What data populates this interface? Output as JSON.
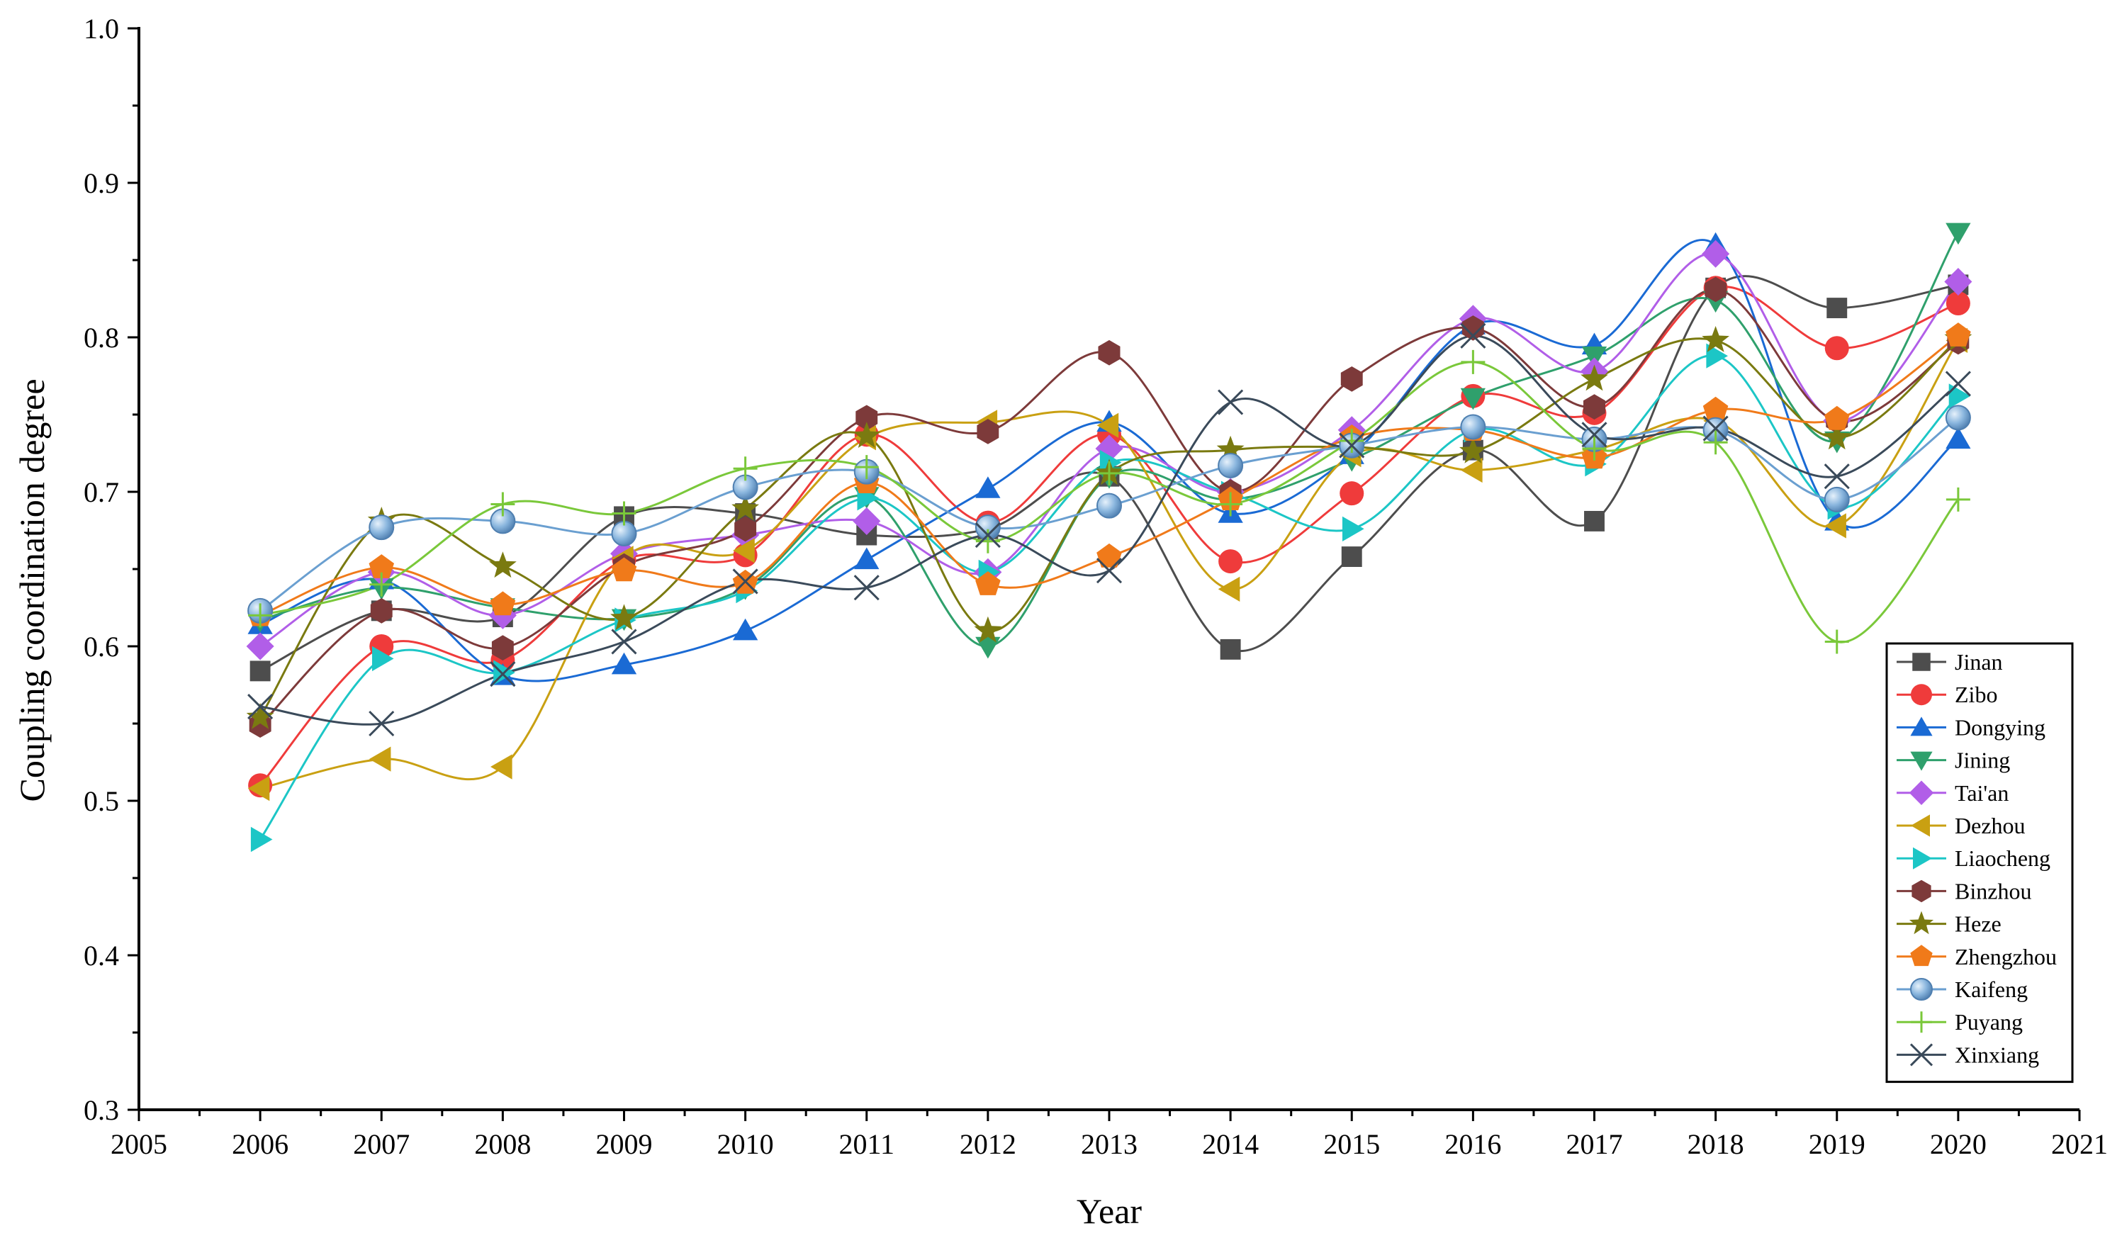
{
  "chart_data": {
    "type": "line",
    "title": "",
    "xlabel": "Year",
    "ylabel": "Coupling coordination degree",
    "xlim": [
      2005,
      2021
    ],
    "ylim": [
      0.3,
      1.0
    ],
    "xticks": [
      2005,
      2006,
      2007,
      2008,
      2009,
      2010,
      2011,
      2012,
      2013,
      2014,
      2015,
      2016,
      2017,
      2018,
      2019,
      2020,
      2021
    ],
    "yticks": [
      "0.3",
      "0.4",
      "0.5",
      "0.6",
      "0.7",
      "0.8",
      "0.9",
      "1.0"
    ],
    "legend_position": "right-middle",
    "x": [
      2006,
      2007,
      2008,
      2009,
      2010,
      2011,
      2012,
      2013,
      2014,
      2015,
      2016,
      2017,
      2018,
      2019,
      2020
    ],
    "series": [
      {
        "name": "Jinan",
        "color": "#4d4d4d",
        "marker": "square",
        "values": [
          0.584,
          0.623,
          0.619,
          0.684,
          0.686,
          0.672,
          0.676,
          0.71,
          0.598,
          0.658,
          0.727,
          0.681,
          0.832,
          0.819,
          0.834
        ]
      },
      {
        "name": "Zibo",
        "color": "#ef3b3b",
        "marker": "circle",
        "values": [
          0.51,
          0.6,
          0.591,
          0.656,
          0.659,
          0.737,
          0.68,
          0.737,
          0.655,
          0.699,
          0.762,
          0.751,
          0.832,
          0.793,
          0.822
        ]
      },
      {
        "name": "Dongying",
        "color": "#1a6ad4",
        "marker": "triangle-up",
        "values": [
          0.614,
          0.643,
          0.581,
          0.588,
          0.61,
          0.656,
          0.702,
          0.745,
          0.686,
          0.724,
          0.808,
          0.795,
          0.86,
          0.681,
          0.734
        ]
      },
      {
        "name": "Jining",
        "color": "#2fa06c",
        "marker": "triangle-down",
        "values": [
          0.617,
          0.638,
          0.625,
          0.618,
          0.638,
          0.697,
          0.6,
          0.71,
          0.695,
          0.721,
          0.761,
          0.788,
          0.824,
          0.733,
          0.868
        ]
      },
      {
        "name": "Tai'an",
        "color": "#b15ee8",
        "marker": "diamond",
        "values": [
          0.6,
          0.648,
          0.62,
          0.66,
          0.672,
          0.681,
          0.648,
          0.728,
          0.7,
          0.74,
          0.812,
          0.778,
          0.854,
          0.746,
          0.836
        ]
      },
      {
        "name": "Dezhou",
        "color": "#c9a012",
        "marker": "triangle-left",
        "values": [
          0.508,
          0.527,
          0.522,
          0.657,
          0.662,
          0.735,
          0.745,
          0.743,
          0.637,
          0.724,
          0.714,
          0.727,
          0.746,
          0.678,
          0.798
        ]
      },
      {
        "name": "Liaocheng",
        "color": "#1cc6c6",
        "marker": "triangle-right",
        "values": [
          0.475,
          0.592,
          0.583,
          0.617,
          0.636,
          0.696,
          0.648,
          0.719,
          0.699,
          0.676,
          0.74,
          0.718,
          0.788,
          0.69,
          0.762
        ]
      },
      {
        "name": "Binzhou",
        "color": "#7d3a3a",
        "marker": "hexagon",
        "values": [
          0.549,
          0.623,
          0.599,
          0.652,
          0.676,
          0.748,
          0.739,
          0.79,
          0.7,
          0.773,
          0.806,
          0.755,
          0.831,
          0.746,
          0.797
        ]
      },
      {
        "name": "Heze",
        "color": "#7a7a10",
        "marker": "star",
        "values": [
          0.554,
          0.681,
          0.652,
          0.618,
          0.689,
          0.736,
          0.61,
          0.712,
          0.727,
          0.729,
          0.726,
          0.773,
          0.798,
          0.735,
          0.799
        ]
      },
      {
        "name": "Zhengzhou",
        "color": "#f07a1a",
        "marker": "pentagon",
        "values": [
          0.62,
          0.651,
          0.627,
          0.649,
          0.641,
          0.706,
          0.64,
          0.658,
          0.695,
          0.735,
          0.74,
          0.722,
          0.753,
          0.747,
          0.801
        ]
      },
      {
        "name": "Kaifeng",
        "color": "#6a9fd0",
        "marker": "sphere",
        "values": [
          0.623,
          0.677,
          0.681,
          0.673,
          0.703,
          0.713,
          0.677,
          0.691,
          0.717,
          0.73,
          0.742,
          0.734,
          0.74,
          0.695,
          0.748
        ]
      },
      {
        "name": "Puyang",
        "color": "#7ac83a",
        "marker": "plus",
        "values": [
          0.62,
          0.64,
          0.692,
          0.686,
          0.715,
          0.716,
          0.668,
          0.712,
          0.692,
          0.733,
          0.784,
          0.728,
          0.732,
          0.603,
          0.695
        ]
      },
      {
        "name": "Xinxiang",
        "color": "#3a4a5a",
        "marker": "x",
        "values": [
          0.561,
          0.55,
          0.582,
          0.603,
          0.642,
          0.638,
          0.672,
          0.649,
          0.758,
          0.73,
          0.801,
          0.737,
          0.741,
          0.71,
          0.77
        ]
      }
    ]
  }
}
